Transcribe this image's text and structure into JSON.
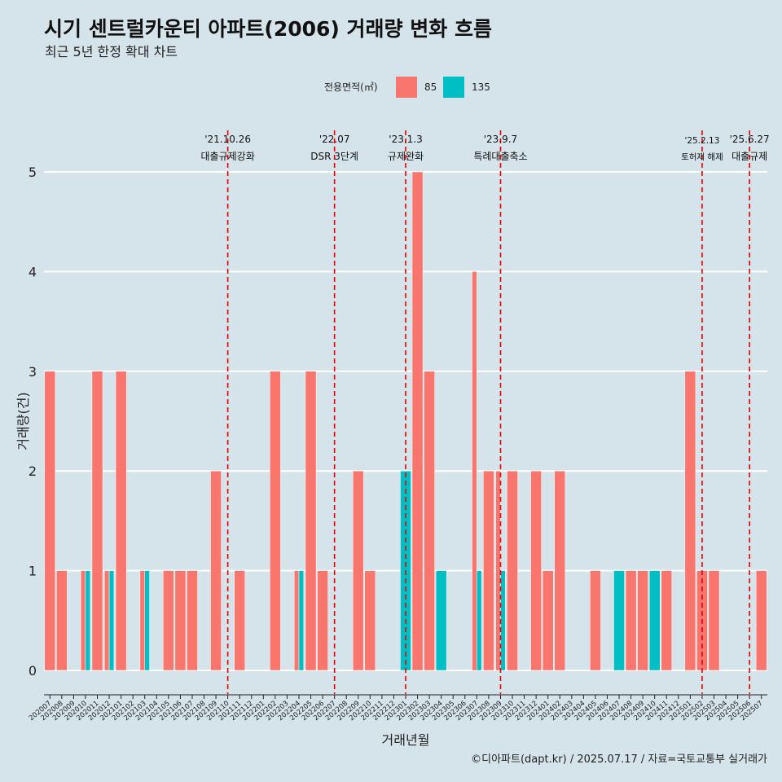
{
  "colors": {
    "85": "#f8766d",
    "135": "#00bfc4",
    "background": "#d5e3ea",
    "grid": "#ffffff",
    "vline": "#ee0000"
  },
  "chart_data": {
    "type": "bar",
    "title": "시기 센트럴카운티 아파트(2006) 거래량 변화 흐름",
    "subtitle": "최근 5년 한정 확대 차트",
    "xlabel": "거래년월",
    "ylabel": "거래량(건)",
    "ylim": [
      0,
      5
    ],
    "yticks": [
      "0",
      "1",
      "2",
      "3",
      "4",
      "5"
    ],
    "legend_title": "전용면적(㎡)",
    "caption": "©디아파트(dapt.kr) / 2025.07.17 / 자료=국토교통부 실거래가",
    "categories": [
      "202007",
      "202008",
      "202009",
      "202010",
      "202011",
      "202012",
      "202101",
      "202102",
      "202103",
      "202104",
      "202105",
      "202106",
      "202107",
      "202108",
      "202109",
      "202110",
      "202111",
      "202112",
      "202201",
      "202202",
      "202203",
      "202204",
      "202205",
      "202206",
      "202207",
      "202208",
      "202209",
      "202210",
      "202211",
      "202212",
      "202301",
      "202302",
      "202303",
      "202304",
      "202305",
      "202306",
      "202307",
      "202308",
      "202309",
      "202310",
      "202311",
      "202312",
      "202401",
      "202402",
      "202403",
      "202404",
      "202405",
      "202406",
      "202407",
      "202408",
      "202409",
      "202410",
      "202411",
      "202412",
      "202501",
      "202502",
      "202503",
      "202504",
      "202505",
      "202506",
      "202507"
    ],
    "series": [
      {
        "name": "85",
        "values": [
          3,
          1,
          0,
          1,
          3,
          1,
          3,
          0,
          1,
          0,
          1,
          1,
          1,
          0,
          2,
          0,
          1,
          0,
          0,
          3,
          0,
          1,
          3,
          1,
          0,
          0,
          2,
          1,
          0,
          0,
          0,
          5,
          3,
          0,
          0,
          0,
          4,
          2,
          2,
          2,
          0,
          2,
          1,
          2,
          0,
          0,
          1,
          0,
          0,
          1,
          1,
          0,
          1,
          0,
          3,
          1,
          1,
          0,
          0,
          0,
          1
        ]
      },
      {
        "name": "135",
        "values": [
          0,
          0,
          0,
          1,
          0,
          1,
          0,
          0,
          1,
          0,
          0,
          0,
          0,
          0,
          0,
          0,
          0,
          0,
          0,
          0,
          0,
          1,
          0,
          0,
          0,
          0,
          0,
          0,
          0,
          0,
          2,
          0,
          0,
          1,
          0,
          0,
          1,
          0,
          1,
          0,
          0,
          0,
          0,
          0,
          0,
          0,
          0,
          0,
          1,
          0,
          0,
          1,
          0,
          0,
          0,
          0,
          0,
          0,
          0,
          0,
          0
        ]
      }
    ],
    "events": [
      {
        "month": "202110",
        "date": "'21.10.26",
        "label": "대출규제강화"
      },
      {
        "month": "202207",
        "date": "'22.07",
        "label": "DSR 3단계"
      },
      {
        "month": "202301",
        "date": "'23.1.3",
        "label": "규제완화"
      },
      {
        "month": "202309",
        "date": "'23.9.7",
        "label": "특례대출축소"
      },
      {
        "month": "202502",
        "date": "'25.2.13",
        "label": "토허제 해제"
      },
      {
        "month": "202506",
        "date": "'25.6.27",
        "label": "대출규제"
      }
    ]
  }
}
